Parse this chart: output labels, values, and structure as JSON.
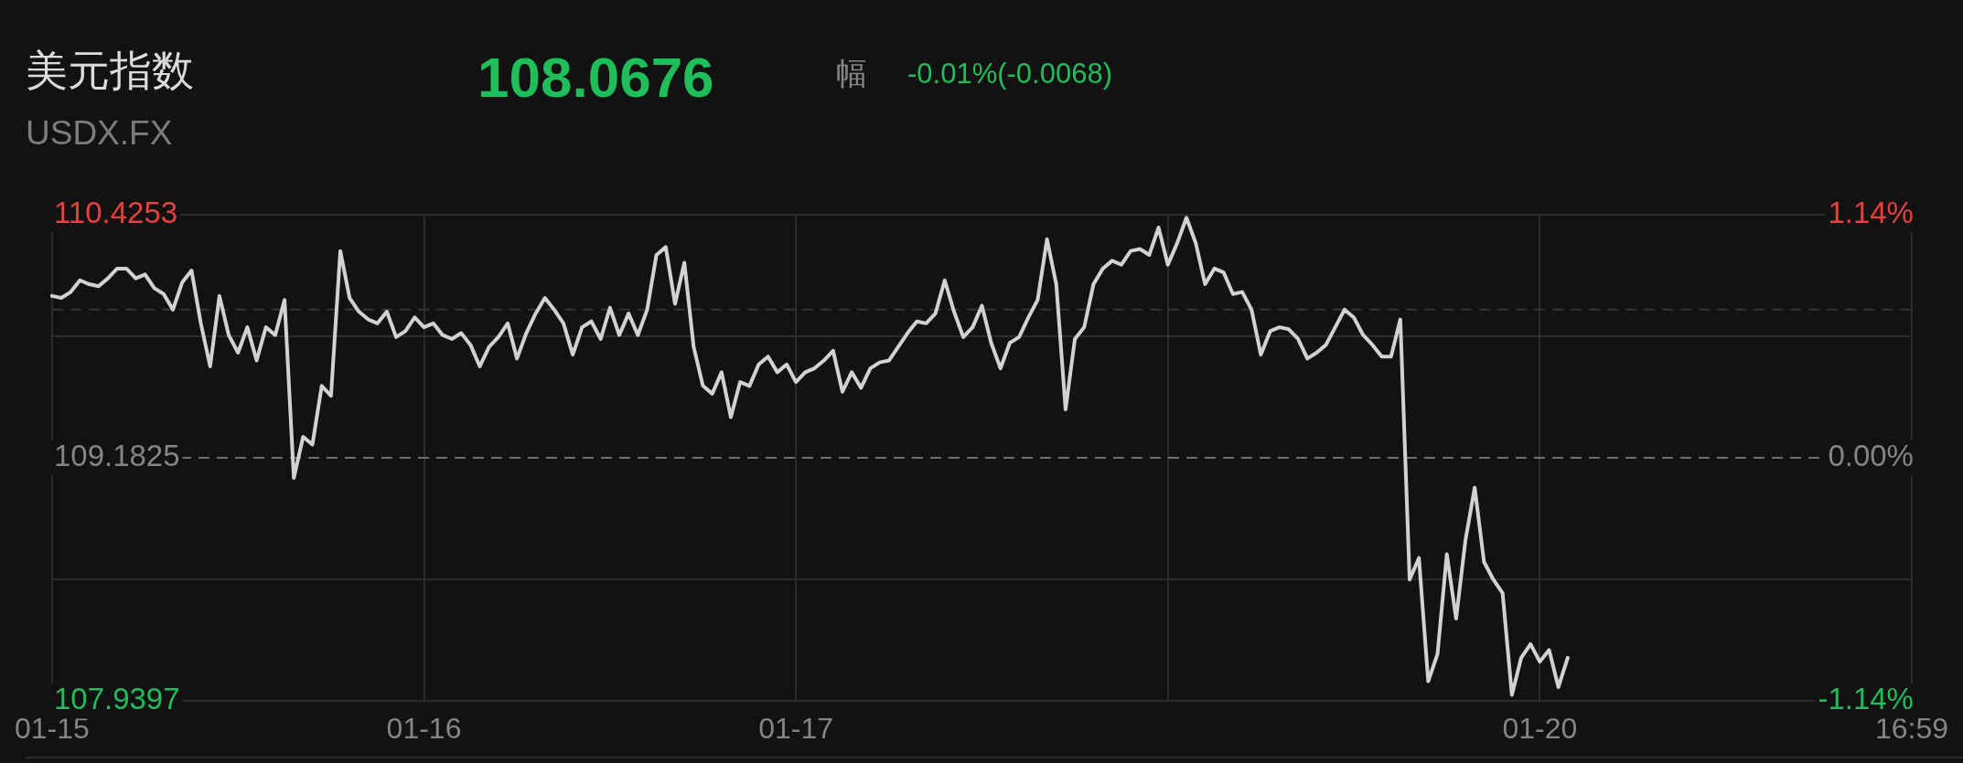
{
  "chart_data": {
    "type": "line",
    "title": "美元指数",
    "subtitle": "USDX.FX",
    "annotations": [
      "108.0676",
      "幅",
      "-0.01%(-0.0068)"
    ],
    "categories": [
      "01-15",
      null,
      null,
      null,
      null,
      null,
      null,
      null,
      null,
      null,
      null,
      null,
      null,
      null,
      null,
      null,
      null,
      null,
      null,
      null,
      null,
      null,
      null,
      null,
      null,
      null,
      null,
      null,
      null,
      null,
      null,
      null,
      null,
      null,
      null,
      null,
      null,
      null,
      null,
      null,
      "01-16",
      null,
      null,
      null,
      null,
      null,
      null,
      null,
      null,
      null,
      null,
      null,
      null,
      null,
      null,
      null,
      null,
      null,
      null,
      null,
      null,
      null,
      null,
      null,
      null,
      null,
      null,
      null,
      null,
      null,
      null,
      null,
      null,
      null,
      null,
      null,
      null,
      null,
      null,
      null,
      "01-17",
      null,
      null,
      null,
      null,
      null,
      null,
      null,
      null,
      null,
      null,
      null,
      null,
      null,
      null,
      null,
      null,
      null,
      null,
      null,
      null,
      null,
      null,
      null,
      null,
      null,
      null,
      null,
      null,
      null,
      null,
      null,
      null,
      null,
      null,
      null,
      null,
      null,
      null,
      null,
      null,
      null,
      null,
      null,
      null,
      null,
      null,
      null,
      null,
      null,
      null,
      null,
      null,
      null,
      null,
      null,
      null,
      null,
      null,
      null,
      null,
      null,
      null,
      null,
      null,
      null,
      null,
      null,
      null,
      null,
      null,
      null,
      null,
      null,
      null,
      null,
      null,
      null,
      null,
      null,
      "01-20",
      null,
      null,
      null,
      null,
      null,
      null,
      null,
      null,
      null,
      null,
      null,
      null,
      null,
      null,
      null,
      null,
      null,
      null,
      null,
      null,
      null,
      null,
      null,
      null,
      null,
      null,
      null,
      null,
      null,
      null,
      null,
      null,
      null,
      null,
      null,
      null,
      null,
      null,
      null,
      "16:59"
    ],
    "values": [
      110.01,
      110.0,
      110.03,
      110.09,
      110.07,
      110.06,
      110.1,
      110.15,
      110.15,
      110.1,
      110.12,
      110.05,
      110.02,
      109.94,
      110.08,
      110.14,
      109.87,
      109.65,
      110.01,
      109.81,
      109.72,
      109.85,
      109.68,
      109.85,
      109.81,
      109.99,
      109.08,
      109.29,
      109.25,
      109.55,
      109.5,
      110.24,
      110.0,
      109.93,
      109.89,
      109.87,
      109.93,
      109.8,
      109.83,
      109.9,
      109.85,
      109.87,
      109.81,
      109.79,
      109.82,
      109.76,
      109.65,
      109.75,
      109.8,
      109.87,
      109.69,
      109.82,
      109.92,
      110.0,
      109.94,
      109.87,
      109.71,
      109.85,
      109.88,
      109.79,
      109.95,
      109.81,
      109.92,
      109.81,
      109.94,
      110.22,
      110.26,
      109.97,
      110.18,
      109.75,
      109.55,
      109.51,
      109.62,
      109.39,
      109.57,
      109.55,
      109.66,
      109.7,
      109.62,
      109.66,
      109.57,
      109.62,
      109.64,
      109.68,
      109.73,
      109.52,
      109.62,
      109.54,
      109.64,
      109.67,
      109.68,
      109.75,
      109.82,
      109.88,
      109.87,
      109.92,
      110.09,
      109.93,
      109.8,
      109.85,
      109.96,
      109.77,
      109.64,
      109.77,
      109.8,
      109.9,
      109.99,
      110.3,
      110.07,
      109.43,
      109.79,
      109.85,
      110.07,
      110.15,
      110.19,
      110.17,
      110.24,
      110.25,
      110.22,
      110.36,
      110.17,
      110.28,
      110.41,
      110.28,
      110.07,
      110.15,
      110.13,
      110.02,
      110.03,
      109.94,
      109.71,
      109.83,
      109.85,
      109.84,
      109.79,
      109.69,
      109.72,
      109.76,
      109.85,
      109.94,
      109.9,
      109.81,
      109.76,
      109.7,
      109.7,
      109.89,
      108.56,
      108.67,
      108.04,
      108.18,
      108.69,
      108.36,
      108.76,
      109.03,
      108.65,
      108.56,
      108.49,
      107.97,
      108.16,
      108.23,
      108.14,
      108.2,
      108.01,
      108.16,
      null,
      null,
      null,
      null,
      null,
      null,
      null,
      null,
      null,
      null,
      null,
      null,
      null,
      null,
      null,
      null,
      null,
      null,
      null,
      null,
      null,
      null,
      null,
      null,
      null,
      null,
      null,
      null,
      null,
      null,
      null,
      null,
      null,
      null,
      null,
      null,
      null
    ],
    "color": "#d2d2d2",
    "marker": "none",
    "line_style": "solid",
    "ylim": [
      107.9397,
      110.4253
    ],
    "yticks": [
      110.4253,
      {
        "value": 109.8039,
        "label": null
      },
      109.1825,
      {
        "value": 108.5611,
        "label": null
      },
      107.9397
    ],
    "y2lim": [
      -1.14,
      1.14
    ],
    "y2ticks": [
      {
        "value": 1.14,
        "label": "1.14%"
      },
      {
        "value": 0,
        "label": "0.00%"
      },
      {
        "value": -1.14,
        "label": "-1.14%"
      }
    ],
    "ref_lines": [
      {
        "axis": "y",
        "value": 109.1825,
        "line_style": "dashed",
        "color": "#707070"
      },
      {
        "axis": "y",
        "value": 109.94,
        "line_style": "dashed",
        "color": "#343434"
      }
    ],
    "grid": true
  }
}
